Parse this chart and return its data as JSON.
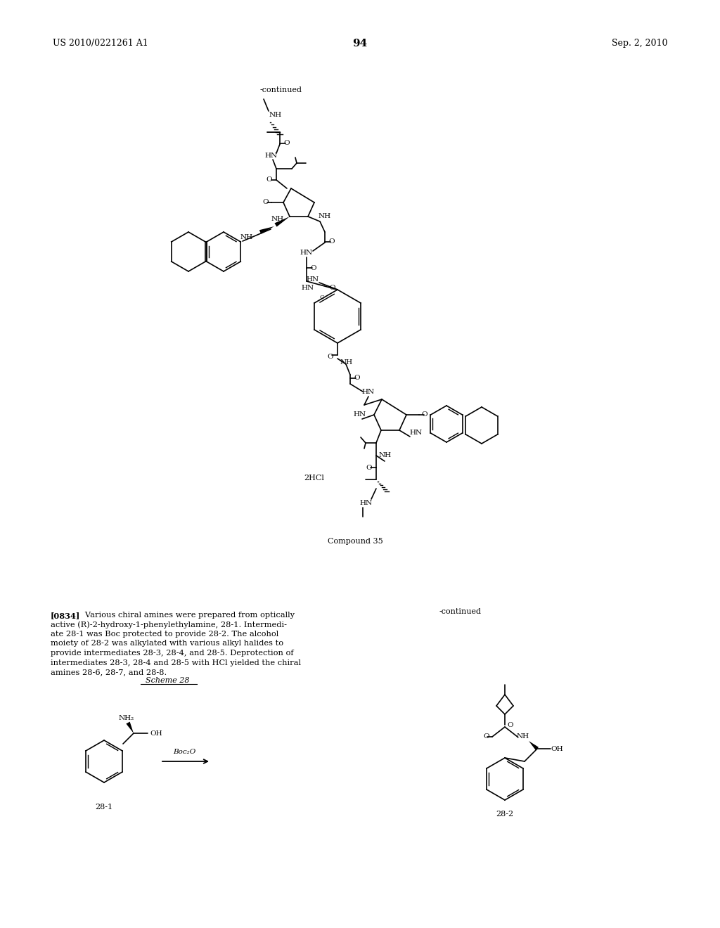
{
  "page_number": "94",
  "patent_number": "US 2010/0221261 A1",
  "patent_date": "Sep. 2, 2010",
  "bg_color": "#ffffff",
  "continued_label_top": "-continued",
  "continued_label_right": "-continued",
  "compound_label": "Compound 35",
  "hcl_label": "2HCl",
  "scheme_label": "Scheme 28",
  "compound_28_1": "28-1",
  "compound_28_2": "28-2",
  "boc_label": "Boc₂O",
  "paragraph_bold": "[0834]",
  "paragraph_rest": "  Various chiral amines were prepared from optically active (R)-2-hydroxy-1-phenylethylamine, 28-1. Intermedi-ate 28-1 was Boc protected to provide 28-2. The alcohol moiety of 28-2 was alkylated with various alkyl halides to provide intermediates 28-3, 28-4, and 28-5. Deprotection of intermediates 28-3, 28-4 and 28-5 with HCl yielded the chiral amines 28-6, 28-7, and 28-8.",
  "para_lines": [
    "[0834]   Various chiral amines were prepared from optically",
    "active (R)-2-hydroxy-1-phenylethylamine, 28-1. Intermedi-",
    "ate 28-1 was Boc protected to provide 28-2. The alcohol",
    "moiety of 28-2 was alkylated with various alkyl halides to",
    "provide intermediates 28-3, 28-4, and 28-5. Deprotection of",
    "intermediates 28-3, 28-4 and 28-5 with HCl yielded the chiral",
    "amines 28-6, 28-7, and 28-8."
  ]
}
